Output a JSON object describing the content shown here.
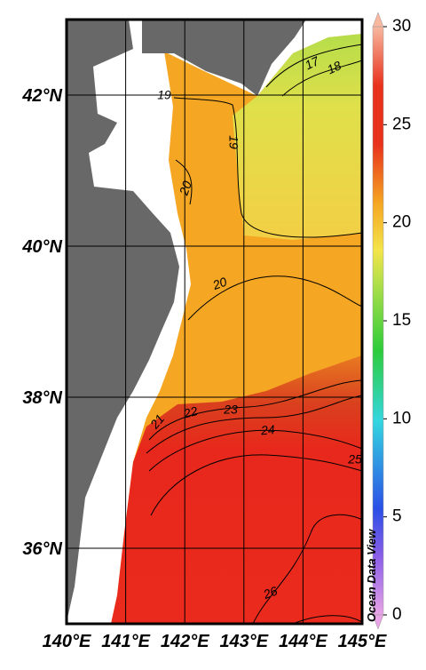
{
  "map": {
    "lon_range": [
      140,
      145
    ],
    "lat_range": [
      35,
      43
    ],
    "lon_ticks": [
      {
        "value": 140,
        "label": "140°E"
      },
      {
        "value": 141,
        "label": "141°E"
      },
      {
        "value": 142,
        "label": "142°E"
      },
      {
        "value": 143,
        "label": "143°E"
      },
      {
        "value": 144,
        "label": "144°E"
      },
      {
        "value": 145,
        "label": "145°E"
      }
    ],
    "lat_ticks": [
      {
        "value": 36,
        "label": "36°N"
      },
      {
        "value": 38,
        "label": "38°N"
      },
      {
        "value": 40,
        "label": "40°N"
      },
      {
        "value": 42,
        "label": "42°N"
      }
    ],
    "colorbar": {
      "range": [
        0,
        30
      ],
      "ticks": [
        0,
        5,
        10,
        15,
        20,
        25,
        30
      ]
    },
    "contour_labels": [
      17,
      18,
      19,
      19,
      20,
      20,
      21,
      22,
      23,
      24,
      25,
      26
    ],
    "credit": "Ocean Data View"
  }
}
